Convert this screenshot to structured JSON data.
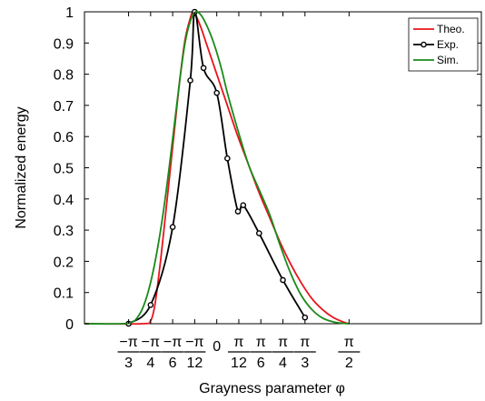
{
  "chart_data": {
    "type": "line",
    "xlabel": "Grayness parameter φ",
    "ylabel": "Normalized energy",
    "xlim": [
      -0.25,
      0.5
    ],
    "ylim": [
      0,
      1
    ],
    "grid": false,
    "legend_position": "top-right",
    "y_ticks": [
      0,
      0.1,
      0.2,
      0.3,
      0.4,
      0.5,
      0.6,
      0.7,
      0.8,
      0.9,
      1
    ],
    "y_tick_labels": [
      "0",
      "0.1",
      "0.2",
      "0.3",
      "0.4",
      "0.5",
      "0.6",
      "0.7",
      "0.8",
      "0.9",
      "1"
    ],
    "x_ticks": [
      {
        "value": -0.16667,
        "sign": "−",
        "num": "π",
        "den": "3"
      },
      {
        "value": -0.125,
        "sign": "−",
        "num": "π",
        "den": "4"
      },
      {
        "value": -0.08333,
        "sign": "−",
        "num": "π",
        "den": "6"
      },
      {
        "value": -0.04167,
        "sign": "−",
        "num": "π",
        "den": "12"
      },
      {
        "value": 0,
        "plain": "0"
      },
      {
        "value": 0.04167,
        "sign": "",
        "num": "π",
        "den": "12"
      },
      {
        "value": 0.08333,
        "sign": "",
        "num": "π",
        "den": "6"
      },
      {
        "value": 0.125,
        "sign": "",
        "num": "π",
        "den": "4"
      },
      {
        "value": 0.16667,
        "sign": "",
        "num": "π",
        "den": "3"
      },
      {
        "value": 0.25,
        "sign": "",
        "num": "π",
        "den": "2"
      }
    ],
    "series": [
      {
        "name": "Theo.",
        "color": "#e8141c",
        "marker": "none",
        "x": [
          -0.25,
          -0.14,
          -0.125,
          -0.118,
          -0.112,
          -0.105,
          -0.098,
          -0.09,
          -0.08,
          -0.07,
          -0.06,
          -0.05,
          -0.045,
          -0.04,
          -0.03,
          -0.02,
          -0.01,
          0,
          0.02,
          0.04,
          0.06,
          0.08,
          0.1,
          0.12,
          0.14,
          0.16,
          0.18,
          0.2,
          0.22,
          0.24,
          0.25
        ],
        "y": [
          0,
          0,
          0.01,
          0.05,
          0.12,
          0.22,
          0.33,
          0.46,
          0.62,
          0.78,
          0.91,
          0.98,
          1.0,
          0.99,
          0.95,
          0.9,
          0.85,
          0.8,
          0.7,
          0.6,
          0.51,
          0.42,
          0.34,
          0.26,
          0.19,
          0.13,
          0.08,
          0.045,
          0.02,
          0.005,
          0
        ]
      },
      {
        "name": "Exp.",
        "color": "#000000",
        "marker": "circle",
        "x": [
          -0.16667,
          -0.125,
          -0.08333,
          -0.05,
          -0.04167,
          -0.025,
          0,
          0.02,
          0.04,
          0.05,
          0.08,
          0.125,
          0.16667
        ],
        "y": [
          0.0,
          0.06,
          0.31,
          0.78,
          1.0,
          0.82,
          0.74,
          0.53,
          0.36,
          0.38,
          0.29,
          0.14,
          0.02
        ]
      },
      {
        "name": "Sim.",
        "color": "#1a8a1a",
        "marker": "none",
        "x": [
          -0.25,
          -0.18,
          -0.16,
          -0.15,
          -0.14,
          -0.13,
          -0.12,
          -0.11,
          -0.1,
          -0.09,
          -0.08,
          -0.07,
          -0.06,
          -0.05,
          -0.04,
          -0.03,
          -0.02,
          -0.01,
          0,
          0.01,
          0.02,
          0.04,
          0.06,
          0.08,
          0.1,
          0.12,
          0.14,
          0.16,
          0.18,
          0.2,
          0.22,
          0.24,
          0.25
        ],
        "y": [
          0,
          0,
          0.005,
          0.02,
          0.05,
          0.1,
          0.17,
          0.26,
          0.37,
          0.5,
          0.64,
          0.78,
          0.9,
          0.97,
          1.0,
          0.99,
          0.96,
          0.92,
          0.87,
          0.81,
          0.74,
          0.62,
          0.51,
          0.43,
          0.35,
          0.25,
          0.16,
          0.09,
          0.045,
          0.018,
          0.006,
          0.001,
          0
        ]
      }
    ]
  }
}
